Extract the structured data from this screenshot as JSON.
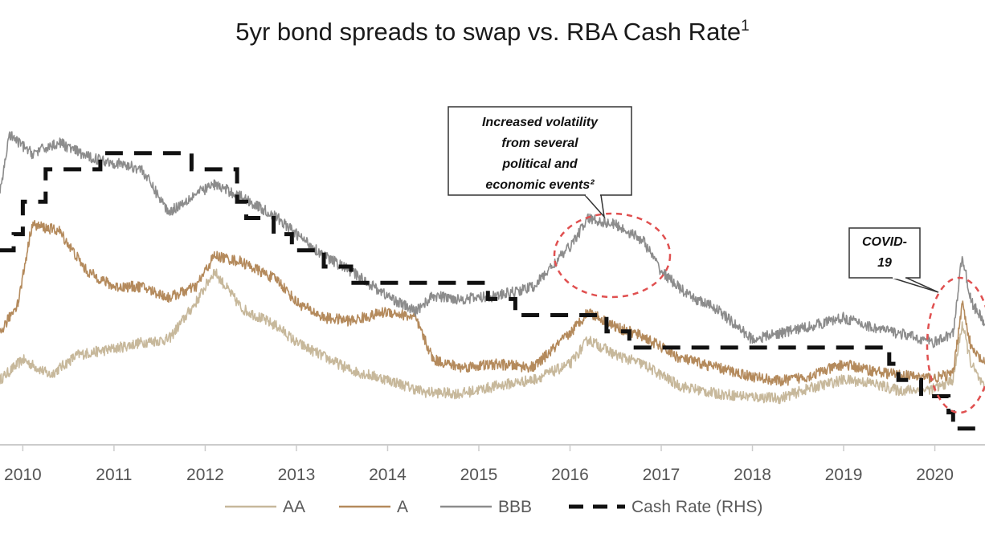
{
  "chart_data": {
    "type": "line",
    "title": "5yr bond spreads to swap vs. RBA Cash Rate",
    "title_superscript": "1",
    "x_range": [
      2009.75,
      2020.55
    ],
    "x_tick_labels": [
      "2010",
      "2011",
      "2012",
      "2013",
      "2014",
      "2015",
      "2016",
      "2017",
      "2018",
      "2019",
      "2020"
    ],
    "y_axis_labels_shown": false,
    "series": [
      {
        "name": "AA",
        "color": "#c7b89b",
        "style": "solid",
        "points": [
          [
            2009.75,
            0.42
          ],
          [
            2010.0,
            0.55
          ],
          [
            2010.3,
            0.45
          ],
          [
            2010.6,
            0.58
          ],
          [
            2011.0,
            0.62
          ],
          [
            2011.3,
            0.66
          ],
          [
            2011.6,
            0.68
          ],
          [
            2011.9,
            0.92
          ],
          [
            2012.1,
            1.12
          ],
          [
            2012.4,
            0.88
          ],
          [
            2012.8,
            0.76
          ],
          [
            2013.0,
            0.66
          ],
          [
            2013.3,
            0.57
          ],
          [
            2013.6,
            0.48
          ],
          [
            2014.0,
            0.42
          ],
          [
            2014.4,
            0.34
          ],
          [
            2014.8,
            0.33
          ],
          [
            2015.2,
            0.38
          ],
          [
            2015.6,
            0.42
          ],
          [
            2016.0,
            0.52
          ],
          [
            2016.2,
            0.68
          ],
          [
            2016.5,
            0.58
          ],
          [
            2016.8,
            0.52
          ],
          [
            2017.2,
            0.38
          ],
          [
            2017.6,
            0.33
          ],
          [
            2018.0,
            0.31
          ],
          [
            2018.3,
            0.3
          ],
          [
            2018.6,
            0.36
          ],
          [
            2019.0,
            0.42
          ],
          [
            2019.3,
            0.4
          ],
          [
            2019.6,
            0.35
          ],
          [
            2020.0,
            0.36
          ],
          [
            2020.2,
            0.42
          ],
          [
            2020.3,
            0.78
          ],
          [
            2020.4,
            0.52
          ],
          [
            2020.55,
            0.35
          ]
        ]
      },
      {
        "name": "A",
        "color": "#b48a5c",
        "style": "solid",
        "points": [
          [
            2009.75,
            0.72
          ],
          [
            2009.95,
            0.92
          ],
          [
            2010.1,
            1.42
          ],
          [
            2010.4,
            1.38
          ],
          [
            2010.7,
            1.12
          ],
          [
            2011.0,
            1.02
          ],
          [
            2011.3,
            1.02
          ],
          [
            2011.6,
            0.95
          ],
          [
            2011.9,
            1.02
          ],
          [
            2012.1,
            1.22
          ],
          [
            2012.4,
            1.18
          ],
          [
            2012.8,
            1.06
          ],
          [
            2013.0,
            0.92
          ],
          [
            2013.3,
            0.82
          ],
          [
            2013.6,
            0.8
          ],
          [
            2014.0,
            0.86
          ],
          [
            2014.3,
            0.82
          ],
          [
            2014.5,
            0.55
          ],
          [
            2014.8,
            0.5
          ],
          [
            2015.2,
            0.52
          ],
          [
            2015.6,
            0.5
          ],
          [
            2016.0,
            0.72
          ],
          [
            2016.2,
            0.86
          ],
          [
            2016.5,
            0.76
          ],
          [
            2016.8,
            0.7
          ],
          [
            2017.2,
            0.56
          ],
          [
            2017.6,
            0.5
          ],
          [
            2018.0,
            0.44
          ],
          [
            2018.3,
            0.41
          ],
          [
            2018.6,
            0.44
          ],
          [
            2019.0,
            0.52
          ],
          [
            2019.3,
            0.48
          ],
          [
            2019.6,
            0.45
          ],
          [
            2020.0,
            0.43
          ],
          [
            2020.2,
            0.46
          ],
          [
            2020.3,
            0.92
          ],
          [
            2020.4,
            0.62
          ],
          [
            2020.55,
            0.52
          ]
        ]
      },
      {
        "name": "BBB",
        "color": "#8c8c8c",
        "style": "solid",
        "points": [
          [
            2009.75,
            1.62
          ],
          [
            2009.85,
            2.0
          ],
          [
            2010.1,
            1.88
          ],
          [
            2010.4,
            1.95
          ],
          [
            2010.7,
            1.86
          ],
          [
            2011.0,
            1.82
          ],
          [
            2011.3,
            1.78
          ],
          [
            2011.6,
            1.5
          ],
          [
            2011.9,
            1.62
          ],
          [
            2012.1,
            1.68
          ],
          [
            2012.4,
            1.6
          ],
          [
            2012.8,
            1.46
          ],
          [
            2013.0,
            1.36
          ],
          [
            2013.3,
            1.22
          ],
          [
            2013.6,
            1.12
          ],
          [
            2014.0,
            0.96
          ],
          [
            2014.3,
            0.86
          ],
          [
            2014.5,
            0.96
          ],
          [
            2014.8,
            0.94
          ],
          [
            2015.2,
            0.96
          ],
          [
            2015.6,
            1.02
          ],
          [
            2016.0,
            1.28
          ],
          [
            2016.2,
            1.46
          ],
          [
            2016.5,
            1.42
          ],
          [
            2016.8,
            1.32
          ],
          [
            2017.0,
            1.12
          ],
          [
            2017.3,
            0.96
          ],
          [
            2017.6,
            0.88
          ],
          [
            2018.0,
            0.68
          ],
          [
            2018.3,
            0.72
          ],
          [
            2018.6,
            0.76
          ],
          [
            2019.0,
            0.82
          ],
          [
            2019.3,
            0.76
          ],
          [
            2019.6,
            0.72
          ],
          [
            2020.0,
            0.66
          ],
          [
            2020.2,
            0.72
          ],
          [
            2020.3,
            1.22
          ],
          [
            2020.4,
            0.92
          ],
          [
            2020.55,
            0.78
          ]
        ]
      },
      {
        "name": "Cash Rate (RHS)",
        "color": "#111111",
        "style": "dashed",
        "axis": "right",
        "points": [
          [
            2009.75,
            3.0
          ],
          [
            2009.9,
            3.25
          ],
          [
            2010.0,
            3.75
          ],
          [
            2010.25,
            4.25
          ],
          [
            2010.85,
            4.5
          ],
          [
            2011.85,
            4.25
          ],
          [
            2012.0,
            4.25
          ],
          [
            2012.35,
            3.75
          ],
          [
            2012.45,
            3.5
          ],
          [
            2012.75,
            3.25
          ],
          [
            2012.95,
            3.0
          ],
          [
            2013.3,
            2.75
          ],
          [
            2013.6,
            2.5
          ],
          [
            2015.1,
            2.25
          ],
          [
            2015.4,
            2.0
          ],
          [
            2016.4,
            1.75
          ],
          [
            2016.65,
            1.5
          ],
          [
            2019.45,
            1.5
          ],
          [
            2019.5,
            1.25
          ],
          [
            2019.6,
            1.0
          ],
          [
            2019.85,
            0.75
          ],
          [
            2020.15,
            0.5
          ],
          [
            2020.2,
            0.25
          ],
          [
            2020.55,
            0.25
          ]
        ]
      }
    ],
    "annotations": [
      {
        "text": [
          "Increased volatility",
          "from several",
          "political and",
          "economic events²"
        ]
      },
      {
        "text": [
          "COVID-",
          "19"
        ]
      }
    ],
    "legend": {
      "position": "bottom",
      "items": [
        {
          "label": "AA",
          "color": "#c7b89b",
          "style": "solid"
        },
        {
          "label": "A",
          "color": "#b48a5c",
          "style": "solid"
        },
        {
          "label": "BBB",
          "color": "#8c8c8c",
          "style": "solid"
        },
        {
          "label": "Cash Rate (RHS)",
          "color": "#111111",
          "style": "dashed"
        }
      ]
    }
  }
}
